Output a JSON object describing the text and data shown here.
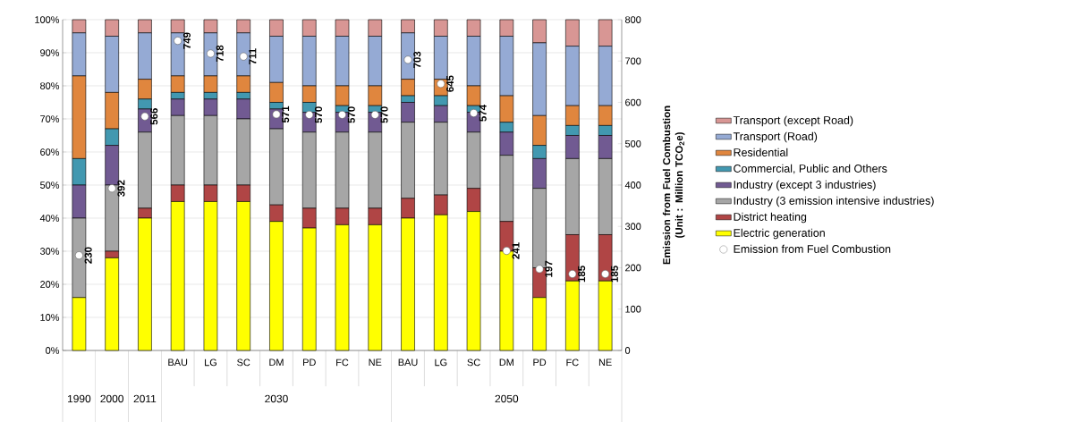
{
  "chart_data": {
    "type": "bar",
    "stacked": true,
    "categories": [
      null,
      null,
      null,
      "BAU",
      "LG",
      "SC",
      "DM",
      "PD",
      "FC",
      "NE",
      "BAU",
      "LG",
      "SC",
      "DM",
      "PD",
      "FC",
      "NE"
    ],
    "annotations": [
      "1990",
      "2000",
      "2011",
      "2030",
      "2050"
    ],
    "series": [
      {
        "name": "Electric generation",
        "color": "#ffff00",
        "values": [
          16,
          28,
          40,
          45,
          45,
          45,
          39,
          37,
          38,
          38,
          40,
          41,
          42,
          30,
          16,
          21,
          21
        ]
      },
      {
        "name": "District heating",
        "color": "#b04545",
        "values": [
          0,
          2,
          3,
          5,
          5,
          5,
          5,
          6,
          5,
          5,
          6,
          6,
          7,
          9,
          9,
          14,
          14
        ]
      },
      {
        "name": "Industry (3 emission intensive industries)",
        "color": "#a6a6a6",
        "values": [
          24,
          20,
          23,
          21,
          21,
          20,
          23,
          23,
          23,
          23,
          23,
          22,
          17,
          20,
          24,
          23,
          23
        ]
      },
      {
        "name": "Industry (except 3 industries)",
        "color": "#715a92",
        "values": [
          10,
          12,
          7,
          5,
          5,
          6,
          6,
          6,
          6,
          6,
          6,
          5,
          6,
          7,
          9,
          7,
          7
        ]
      },
      {
        "name": "Commercial, Public and Others",
        "color": "#4298b0",
        "values": [
          8,
          5,
          3,
          2,
          2,
          2,
          2,
          3,
          2,
          2,
          2,
          3,
          2,
          3,
          4,
          3,
          3
        ]
      },
      {
        "name": "Residential",
        "color": "#e0863e",
        "values": [
          25,
          11,
          6,
          5,
          5,
          5,
          6,
          5,
          6,
          6,
          5,
          5,
          6,
          8,
          9,
          6,
          6
        ]
      },
      {
        "name": "Transport (Road)",
        "color": "#95aad4",
        "values": [
          13,
          17,
          14,
          13,
          13,
          13,
          14,
          15,
          15,
          15,
          14,
          13,
          15,
          18,
          22,
          18,
          18
        ]
      },
      {
        "name": "Transport (except Road)",
        "color": "#d89694",
        "values": [
          4,
          5,
          4,
          4,
          4,
          4,
          5,
          5,
          5,
          5,
          4,
          5,
          5,
          5,
          7,
          8,
          8
        ]
      },
      {
        "name": "Emission from Fuel Combustion",
        "type": "scatter",
        "axis": "y2",
        "marker": "circle",
        "color": "#ffffff",
        "values": [
          230,
          392,
          566,
          749,
          718,
          711,
          571,
          570,
          570,
          570,
          703,
          645,
          574,
          241,
          197,
          185,
          185
        ],
        "value_labels": [
          "230",
          "392",
          "566",
          "749",
          "718",
          "711",
          "571",
          "570",
          "570",
          "570",
          "703",
          "645",
          "574",
          "241",
          "197",
          "185",
          "185"
        ]
      }
    ],
    "ylim": [
      0,
      100
    ],
    "yticks": [
      {
        "value": 0,
        "label": "0%"
      },
      {
        "value": 10,
        "label": "10%"
      },
      {
        "value": 20,
        "label": "20%"
      },
      {
        "value": 30,
        "label": "30%"
      },
      {
        "value": 40,
        "label": "40%"
      },
      {
        "value": 50,
        "label": "50%"
      },
      {
        "value": 60,
        "label": "60%"
      },
      {
        "value": 70,
        "label": "70%"
      },
      {
        "value": 80,
        "label": "80%"
      },
      {
        "value": 90,
        "label": "90%"
      },
      {
        "value": 100,
        "label": "100%"
      }
    ],
    "y2lim": [
      0,
      800
    ],
    "y2ticks": [
      0,
      100,
      200,
      300,
      400,
      500,
      600,
      700,
      800
    ],
    "y2label": "Emission from Fuel Combustion (Unit : Million TCO$_{2}$e)",
    "grid": "y",
    "legend": "right"
  }
}
